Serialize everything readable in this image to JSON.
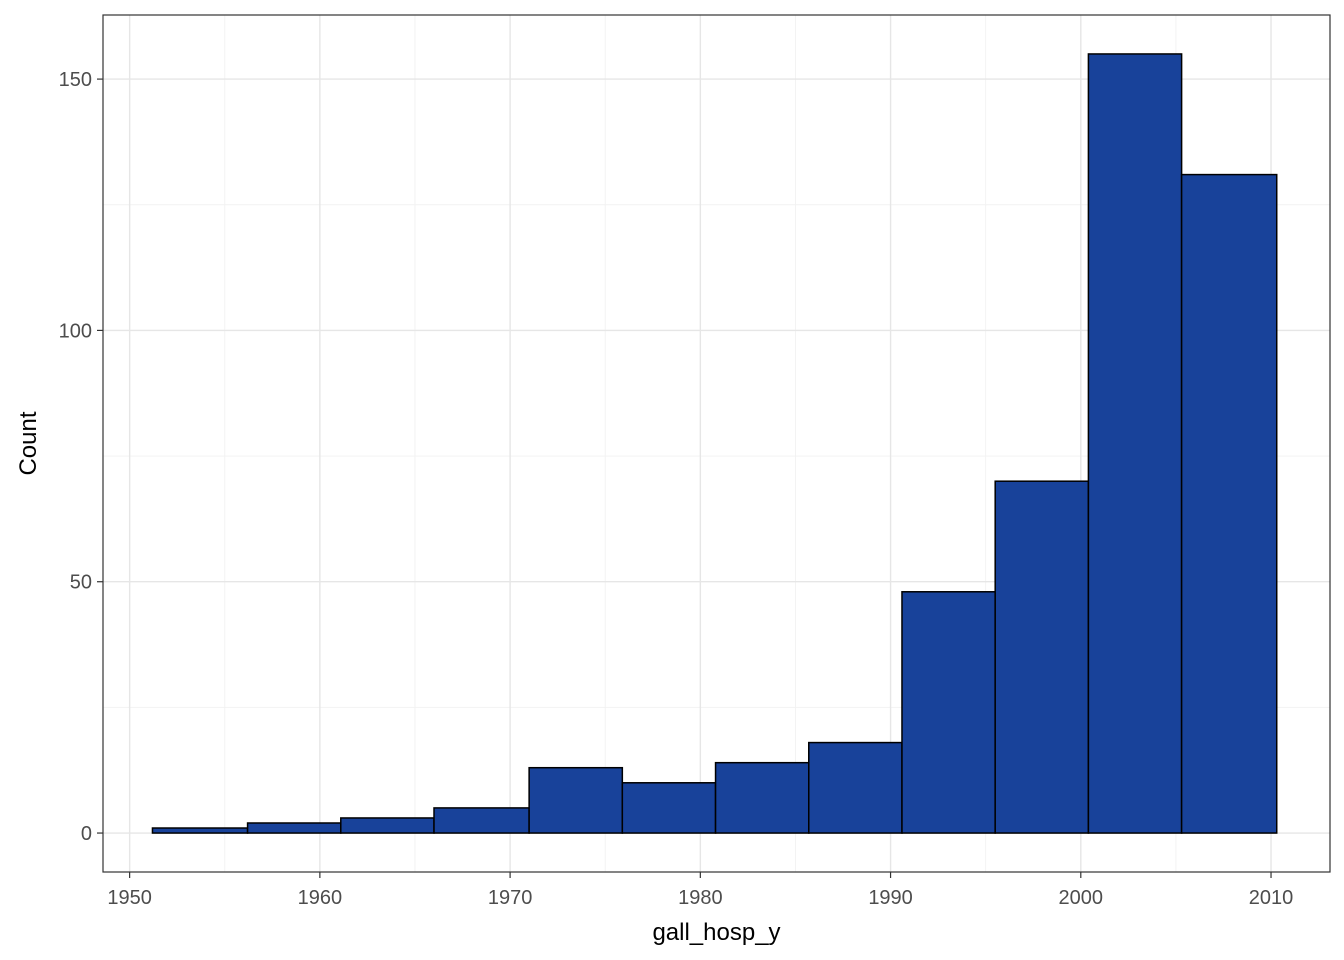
{
  "chart_data": {
    "type": "bar",
    "subtype": "histogram",
    "xlabel": "gall_hosp_y",
    "ylabel": "Count",
    "xlim": [
      1948.6,
      2013.1
    ],
    "ylim": [
      -7.75,
      162.75
    ],
    "x_ticks": [
      1950,
      1960,
      1970,
      1980,
      1990,
      2000,
      2010
    ],
    "y_ticks": [
      0,
      50,
      100,
      150
    ],
    "x_minor_ticks": [
      1955,
      1965,
      1975,
      1985,
      1995,
      2005
    ],
    "y_minor_ticks": [
      25,
      75,
      125
    ],
    "bins": [
      {
        "x0": 1951.2,
        "x1": 1956.2,
        "count": 1
      },
      {
        "x0": 1956.2,
        "x1": 1961.1,
        "count": 2
      },
      {
        "x0": 1961.1,
        "x1": 1966.0,
        "count": 3
      },
      {
        "x0": 1966.0,
        "x1": 1971.0,
        "count": 5
      },
      {
        "x0": 1971.0,
        "x1": 1975.9,
        "count": 13
      },
      {
        "x0": 1975.9,
        "x1": 1980.8,
        "count": 10
      },
      {
        "x0": 1980.8,
        "x1": 1985.7,
        "count": 14
      },
      {
        "x0": 1985.7,
        "x1": 1990.6,
        "count": 18
      },
      {
        "x0": 1990.6,
        "x1": 1995.5,
        "count": 48
      },
      {
        "x0": 1995.5,
        "x1": 2000.4,
        "count": 70
      },
      {
        "x0": 2000.4,
        "x1": 2005.3,
        "count": 155
      },
      {
        "x0": 2005.3,
        "x1": 2010.3,
        "count": 131
      }
    ],
    "bar_fill": "#18429A",
    "bar_outline": "#000000",
    "grid": true,
    "theme": "bw"
  }
}
